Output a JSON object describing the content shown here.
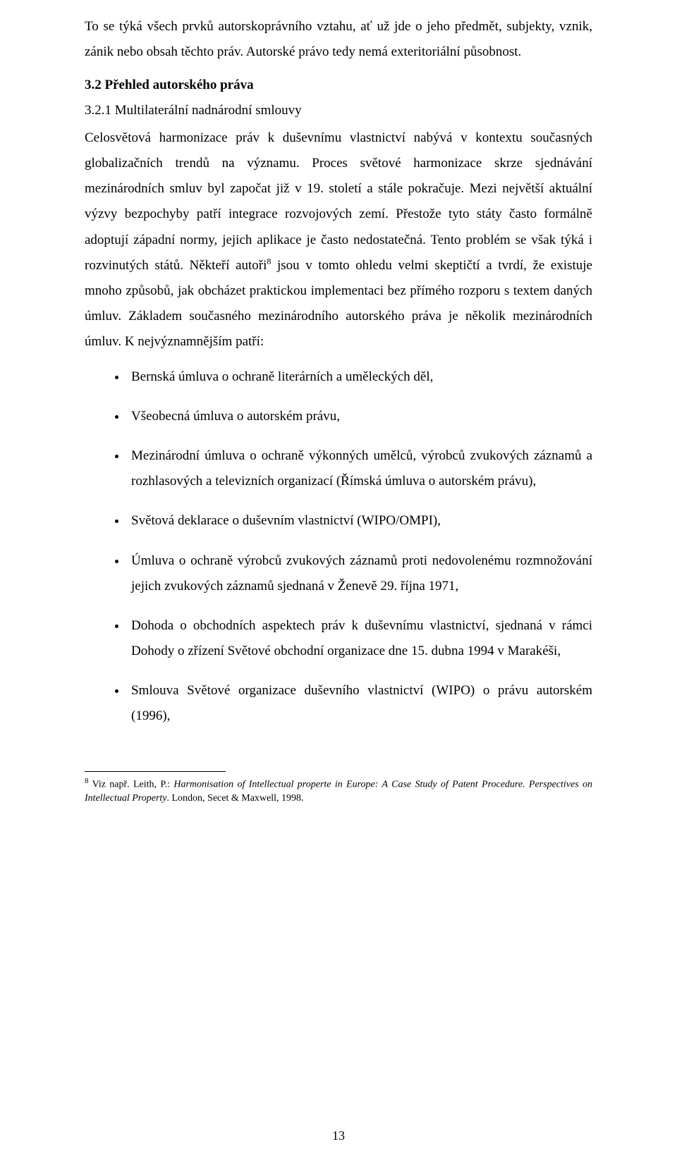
{
  "intro_paragraph": "To se týká všech prvků autorskoprávního vztahu, ať už jde o jeho předmět, subjekty, vznik, zánik nebo obsah těchto práv. Autorské právo tedy nemá exteritoriální působnost.",
  "heading_h2": "3.2 Přehled autorského práva",
  "heading_h3": "3.2.1 Multilaterální nadnárodní smlouvy",
  "body_pre": "Celosvětová harmonizace práv k duševnímu vlastnictví nabývá v kontextu současných globalizačních trendů na významu. Proces světové harmonizace skrze sjednávání mezinárodních smluv byl započat již v 19. století a stále pokračuje. Mezi největší aktuální výzvy bezpochyby patří integrace rozvojových zemí. Přestože tyto státy často formálně adoptují západní normy, jejich aplikace je často nedostatečná. Tento problém se však týká i rozvinutých států. Někteří autoři",
  "footnote_ref": "8",
  "body_post": " jsou v tomto ohledu velmi skeptičtí a tvrdí, že existuje mnoho způsobů, jak obcházet praktickou implementaci bez přímého rozporu s textem daných úmluv. Základem současného mezinárodního autorského práva je několik mezinárodních úmluv. K nejvýznamnějším patří:",
  "bullets": [
    "Bernská úmluva o ochraně literárních a uměleckých děl,",
    "Všeobecná úmluva o autorském právu,",
    "Mezinárodní úmluva o ochraně výkonných umělců, výrobců zvukových záznamů a rozhlasových a televizních organizací (Římská úmluva o autorském právu),",
    "Světová deklarace o duševním vlastnictví (WIPO/OMPI),",
    "Úmluva o ochraně výrobců zvukových záznamů proti nedovolenému rozmnožování jejich zvukových záznamů sjednaná v Ženevě 29. října 1971,",
    "Dohoda o obchodních aspektech práv k duševnímu vlastnictví, sjednaná v rámci Dohody o zřízení Světové obchodní organizace dne 15. dubna 1994 v Marakéši,",
    "Smlouva Světové organizace duševního vlastnictví (WIPO) o právu autorském (1996),"
  ],
  "footnote": {
    "number": "8",
    "pre": " Viz např. Leith, P.: ",
    "italic": "Harmonisation of Intellectual properte in Europe: A Case Study of Patent Procedure. Perspectives on Intellectual Property",
    "post": ". London, Secet & Maxwell, 1998."
  },
  "page_number": "13"
}
